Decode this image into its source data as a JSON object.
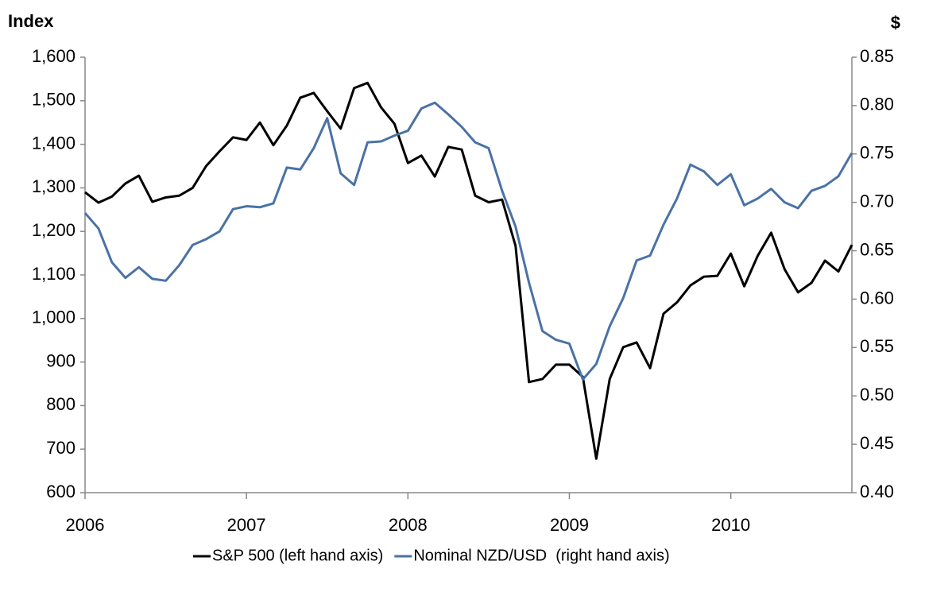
{
  "chart_data": {
    "type": "line",
    "y_label": "Index",
    "y2_label": "$",
    "categories": [
      "2006",
      null,
      null,
      null,
      null,
      null,
      null,
      null,
      null,
      null,
      null,
      null,
      "2007",
      null,
      null,
      null,
      null,
      null,
      null,
      null,
      null,
      null,
      null,
      null,
      "2008",
      null,
      null,
      null,
      null,
      null,
      null,
      null,
      null,
      null,
      null,
      null,
      "2009",
      null,
      null,
      null,
      null,
      null,
      null,
      null,
      null,
      null,
      null,
      null,
      "2010",
      null,
      null,
      null,
      null,
      null,
      null,
      null,
      null,
      null
    ],
    "series": [
      {
        "name": "S&P 500 (left hand axis)",
        "color": "#000000",
        "values": [
          1290,
          1266,
          1280,
          1310,
          1328,
          1268,
          1278,
          1282,
          1300,
          1350,
          1384,
          1416,
          1410,
          1450,
          1398,
          1443,
          1507,
          1518,
          1476,
          1436,
          1529,
          1541,
          1485,
          1447,
          1357,
          1374,
          1326,
          1394,
          1388,
          1282,
          1267,
          1273,
          1167,
          854,
          861,
          894,
          894,
          866,
          678,
          861,
          934,
          945,
          886,
          1011,
          1037,
          1076,
          1096,
          1098,
          1149,
          1074,
          1144,
          1197,
          1113,
          1060,
          1082,
          1133,
          1108,
          1169
        ]
      },
      {
        "name": "Nominal NZD/USD  (right hand axis)",
        "color": "#4a72a6",
        "axis": "y2",
        "values": [
          0.689,
          0.673,
          0.638,
          0.622,
          0.633,
          0.621,
          0.619,
          0.635,
          0.656,
          0.662,
          0.67,
          0.693,
          0.696,
          0.695,
          0.699,
          0.736,
          0.734,
          0.756,
          0.787,
          0.73,
          0.718,
          0.762,
          0.763,
          0.769,
          0.774,
          0.797,
          0.803,
          0.791,
          0.778,
          0.762,
          0.756,
          0.712,
          0.675,
          0.617,
          0.567,
          0.558,
          0.554,
          0.517,
          0.533,
          0.572,
          0.601,
          0.64,
          0.645,
          0.677,
          0.704,
          0.739,
          0.732,
          0.718,
          0.729,
          0.697,
          0.704,
          0.714,
          0.7,
          0.694,
          0.712,
          0.717,
          0.727,
          0.751
        ]
      }
    ],
    "ylim": [
      600,
      1600
    ],
    "yticks": [
      600,
      700,
      800,
      900,
      {
        "value": 1000,
        "label": "1,000"
      },
      {
        "value": 1100,
        "label": "1,100"
      },
      {
        "value": 1200,
        "label": "1,200"
      },
      {
        "value": 1300,
        "label": "1,300"
      },
      {
        "value": 1400,
        "label": "1,400"
      },
      {
        "value": 1500,
        "label": "1,500"
      },
      {
        "value": 1600,
        "label": "1,600"
      }
    ],
    "y2lim": [
      0.4,
      0.85
    ],
    "y2ticks": [
      {
        "value": 0.4,
        "label": "0.40"
      },
      0.45,
      {
        "value": 0.5,
        "label": "0.50"
      },
      0.55,
      {
        "value": 0.6,
        "label": "0.60"
      },
      0.65,
      {
        "value": 0.7,
        "label": "0.70"
      },
      0.75,
      {
        "value": 0.8,
        "label": "0.80"
      },
      0.85
    ],
    "grid": false,
    "legend": "bottom"
  }
}
